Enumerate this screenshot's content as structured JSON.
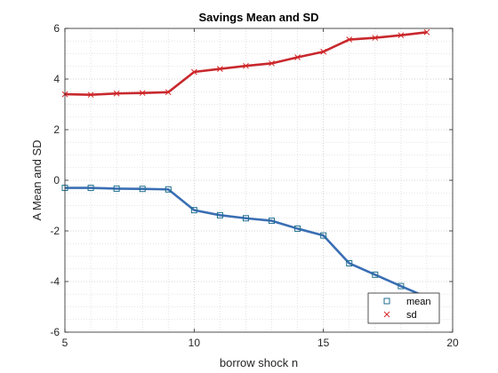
{
  "chart_data": {
    "type": "line",
    "title": "Savings Mean and SD",
    "xlabel": "borrow shock n",
    "ylabel": "A Mean and SD",
    "xlim": [
      5,
      20
    ],
    "ylim": [
      -6,
      6
    ],
    "xticks": [
      "5",
      "10",
      "15",
      "20"
    ],
    "yticks": [
      "-6",
      "-4",
      "-2",
      "0",
      "2",
      "4",
      "6"
    ],
    "grid": "major-and-minor-dotted",
    "legend_position": "bottom-right",
    "x": [
      5,
      6,
      7,
      8,
      9,
      10,
      11,
      12,
      13,
      14,
      15,
      16,
      17,
      18,
      19
    ],
    "series": [
      {
        "name": "mean",
        "marker": "square",
        "line_color": "#3a6eb4",
        "marker_color": "#1f6e8c",
        "values": [
          -0.3,
          -0.3,
          -0.33,
          -0.34,
          -0.36,
          -1.18,
          -1.38,
          -1.5,
          -1.6,
          -1.91,
          -2.18,
          -3.28,
          -3.73,
          -4.18,
          -4.62
        ]
      },
      {
        "name": "sd",
        "marker": "x",
        "line_color": "#c8282d",
        "marker_color": "#d62728",
        "values": [
          3.4,
          3.38,
          3.43,
          3.45,
          3.48,
          4.28,
          4.4,
          4.52,
          4.62,
          4.86,
          5.08,
          5.56,
          5.63,
          5.73,
          5.85
        ]
      }
    ]
  }
}
